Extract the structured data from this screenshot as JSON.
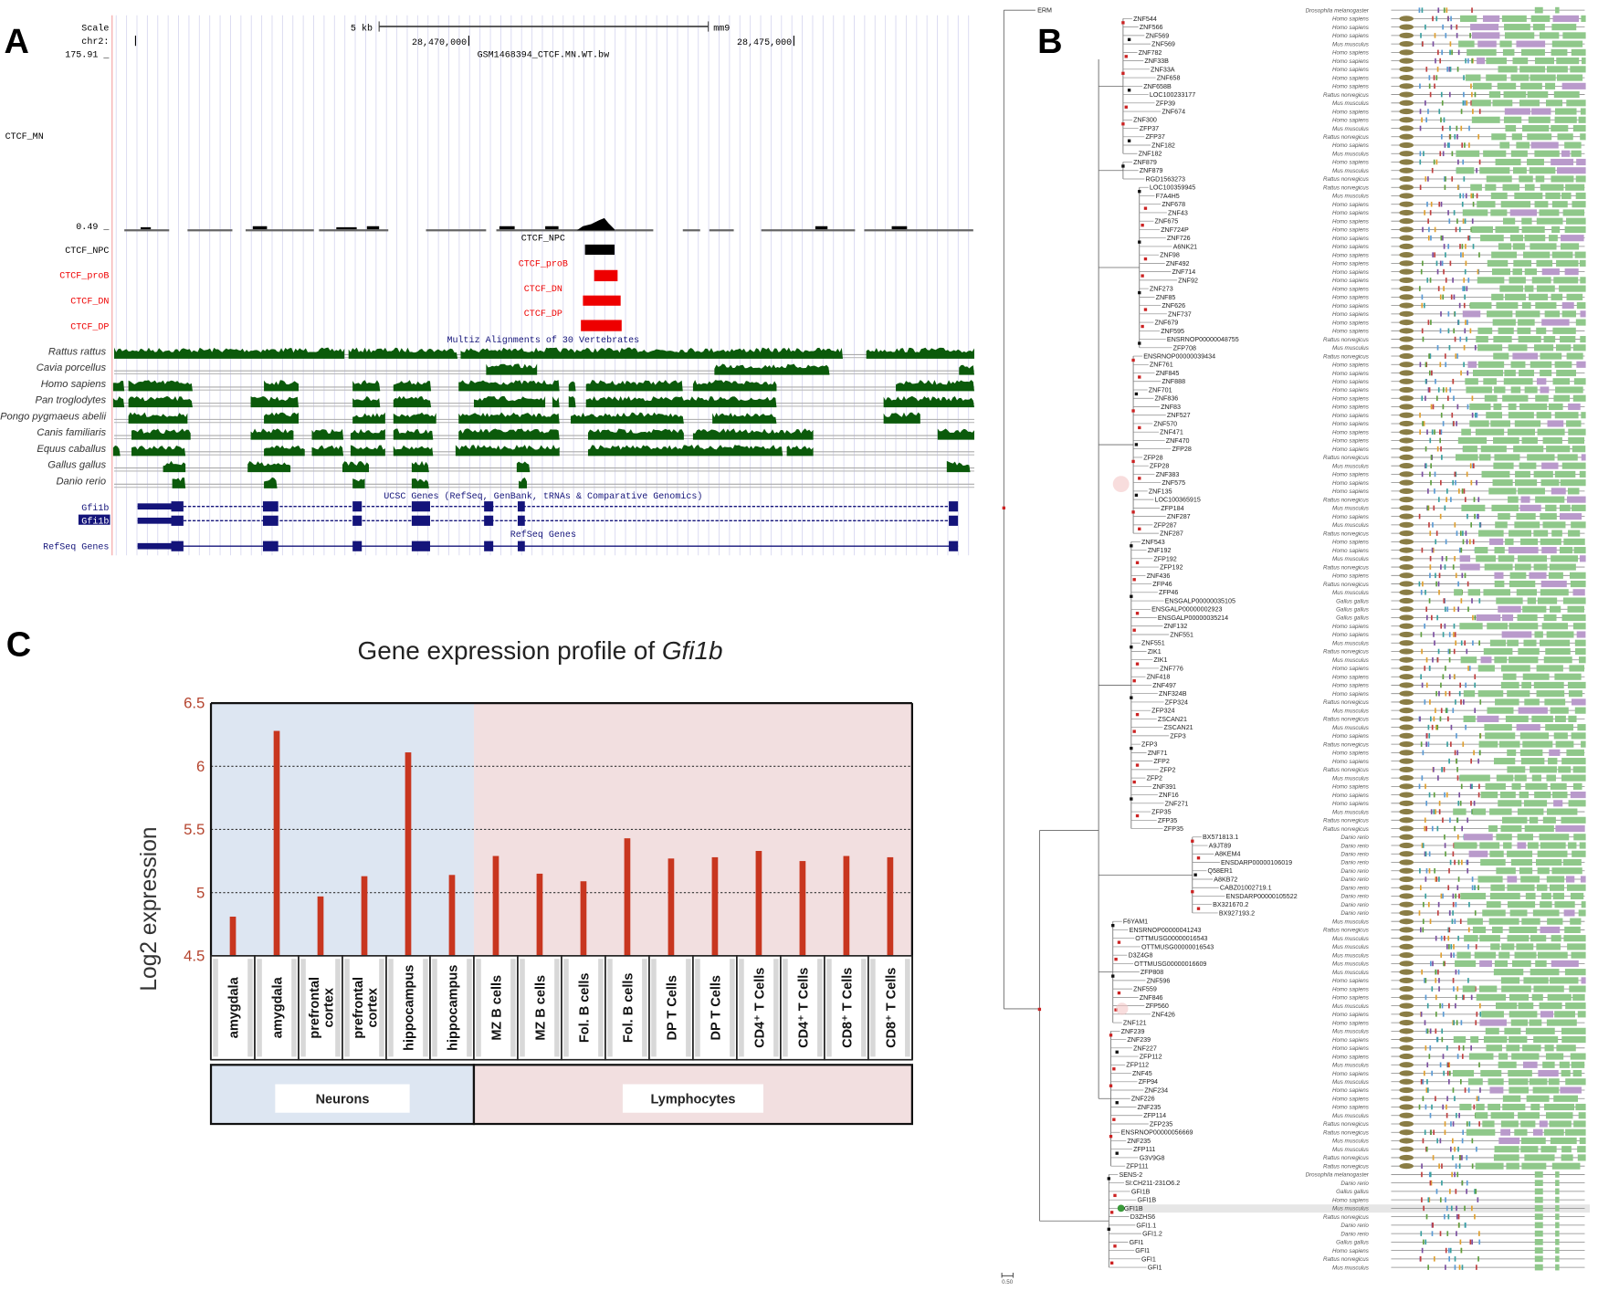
{
  "panel_letters": {
    "a": "A",
    "b": "B",
    "c": "C"
  },
  "panel_a": {
    "left_labels": {
      "scale": "Scale",
      "chr": "chr2:",
      "max": "175.91 _",
      "track": "CTCF_MN",
      "min": "0.49 _",
      "npc": "CTCF_NPC",
      "prob": "CTCF_proB",
      "dn": "CTCF_DN",
      "dp": "CTCF_DP",
      "gene1": "Gfi1b",
      "gene2": "Gfi1b",
      "refseq": "RefSeq Genes"
    },
    "scale_bar": "5 kb",
    "assembly": "mm9",
    "positions": [
      "28,470,000",
      "28,475,000"
    ],
    "signal_title": "GSM1468394_CTCF.MN.WT.bw",
    "peak_tracks": [
      {
        "label": "CTCF_NPC",
        "color": "#000000"
      },
      {
        "label": "CTCF_proB",
        "color": "#ee0000"
      },
      {
        "label": "CTCF_DN",
        "color": "#ee0000"
      },
      {
        "label": "CTCF_DP",
        "color": "#ee0000"
      }
    ],
    "multiz_title": "Multiz Alignments of 30 Vertebrates",
    "species": [
      "Rattus rattus",
      "Cavia porcellus",
      "Homo sapiens",
      "Pan troglodytes",
      "Pongo pygmaeus abelii",
      "Canis familiaris",
      "Equus caballus",
      "Gallus gallus",
      "Danio rerio"
    ],
    "ucsc_title": "UCSC Genes (RefSeq, GenBank, tRNAs & Comparative Genomics)",
    "refseq_title": "RefSeq Genes",
    "colors": {
      "conservation": "#0b5a0b",
      "gene": "#14147a",
      "peak_red": "#ee0000",
      "grid": "#d8d8f0"
    }
  },
  "panel_b": {
    "scale_label": "0.50",
    "highlighted_leaf": "GFI1B",
    "leaves": [
      [
        "ERM",
        "Drosophila melanogaster"
      ],
      [
        "ZNF544",
        "Homo sapiens"
      ],
      [
        "ZNF566",
        "Homo sapiens"
      ],
      [
        "ZNF569",
        "Homo sapiens"
      ],
      [
        "ZNF569",
        "Mus musculus"
      ],
      [
        "ZNF782",
        "Homo sapiens"
      ],
      [
        "ZNF33B",
        "Homo sapiens"
      ],
      [
        "ZNF33A",
        "Homo sapiens"
      ],
      [
        "ZNF658",
        "Homo sapiens"
      ],
      [
        "ZNF658B",
        "Homo sapiens"
      ],
      [
        "LOC100233177",
        "Rattus norvegicus"
      ],
      [
        "ZFP39",
        "Mus musculus"
      ],
      [
        "ZNF674",
        "Homo sapiens"
      ],
      [
        "ZNF300",
        "Homo sapiens"
      ],
      [
        "ZFP37",
        "Mus musculus"
      ],
      [
        "ZFP37",
        "Rattus norvegicus"
      ],
      [
        "ZNF182",
        "Homo sapiens"
      ],
      [
        "ZNF182",
        "Mus musculus"
      ],
      [
        "ZNF879",
        "Homo sapiens"
      ],
      [
        "ZNF879",
        "Mus musculus"
      ],
      [
        "RGD1563273",
        "Rattus norvegicus"
      ],
      [
        "LOC100359945",
        "Rattus norvegicus"
      ],
      [
        "F7A4H5",
        "Mus musculus"
      ],
      [
        "ZNF678",
        "Homo sapiens"
      ],
      [
        "ZNF43",
        "Homo sapiens"
      ],
      [
        "ZNF675",
        "Homo sapiens"
      ],
      [
        "ZNF724P",
        "Homo sapiens"
      ],
      [
        "ZNF726",
        "Homo sapiens"
      ],
      [
        "A6NK21",
        "Homo sapiens"
      ],
      [
        "ZNF98",
        "Homo sapiens"
      ],
      [
        "ZNF492",
        "Homo sapiens"
      ],
      [
        "ZNF714",
        "Homo sapiens"
      ],
      [
        "ZNF92",
        "Homo sapiens"
      ],
      [
        "ZNF273",
        "Homo sapiens"
      ],
      [
        "ZNF85",
        "Homo sapiens"
      ],
      [
        "ZNF626",
        "Homo sapiens"
      ],
      [
        "ZNF737",
        "Homo sapiens"
      ],
      [
        "ZNF679",
        "Homo sapiens"
      ],
      [
        "ZNF595",
        "Homo sapiens"
      ],
      [
        "ENSRNOP00000048755",
        "Rattus norvegicus"
      ],
      [
        "ZFP708",
        "Mus musculus"
      ],
      [
        "ENSRNOP00000039434",
        "Rattus norvegicus"
      ],
      [
        "ZNF761",
        "Homo sapiens"
      ],
      [
        "ZNF845",
        "Homo sapiens"
      ],
      [
        "ZNF888",
        "Homo sapiens"
      ],
      [
        "ZNF701",
        "Homo sapiens"
      ],
      [
        "ZNF836",
        "Homo sapiens"
      ],
      [
        "ZNF83",
        "Homo sapiens"
      ],
      [
        "ZNF527",
        "Homo sapiens"
      ],
      [
        "ZNF570",
        "Homo sapiens"
      ],
      [
        "ZNF471",
        "Homo sapiens"
      ],
      [
        "ZNF470",
        "Homo sapiens"
      ],
      [
        "ZFP28",
        "Homo sapiens"
      ],
      [
        "ZFP28",
        "Rattus norvegicus"
      ],
      [
        "ZFP28",
        "Mus musculus"
      ],
      [
        "ZNF383",
        "Homo sapiens"
      ],
      [
        "ZNF575",
        "Homo sapiens"
      ],
      [
        "ZNF135",
        "Homo sapiens"
      ],
      [
        "LOC100365915",
        "Rattus norvegicus"
      ],
      [
        "ZFP184",
        "Mus musculus"
      ],
      [
        "ZNF287",
        "Homo sapiens"
      ],
      [
        "ZFP287",
        "Mus musculus"
      ],
      [
        "ZNF287",
        "Rattus norvegicus"
      ],
      [
        "ZNF543",
        "Homo sapiens"
      ],
      [
        "ZNF192",
        "Homo sapiens"
      ],
      [
        "ZFP192",
        "Mus musculus"
      ],
      [
        "ZFP192",
        "Rattus norvegicus"
      ],
      [
        "ZNF436",
        "Homo sapiens"
      ],
      [
        "ZFP46",
        "Rattus norvegicus"
      ],
      [
        "ZFP46",
        "Mus musculus"
      ],
      [
        "ENSGALP00000035105",
        "Gallus gallus"
      ],
      [
        "ENSGALP00000002923",
        "Gallus gallus"
      ],
      [
        "ENSGALP00000035214",
        "Gallus gallus"
      ],
      [
        "ZNF132",
        "Homo sapiens"
      ],
      [
        "ZNF551",
        "Homo sapiens"
      ],
      [
        "ZNF551",
        "Mus musculus"
      ],
      [
        "ZIK1",
        "Rattus norvegicus"
      ],
      [
        "ZIK1",
        "Mus musculus"
      ],
      [
        "ZNF776",
        "Homo sapiens"
      ],
      [
        "ZNF418",
        "Homo sapiens"
      ],
      [
        "ZNF497",
        "Homo sapiens"
      ],
      [
        "ZNF324B",
        "Homo sapiens"
      ],
      [
        "ZFP324",
        "Rattus norvegicus"
      ],
      [
        "ZFP324",
        "Mus musculus"
      ],
      [
        "ZSCAN21",
        "Rattus norvegicus"
      ],
      [
        "ZSCAN21",
        "Mus musculus"
      ],
      [
        "ZFP3",
        "Homo sapiens"
      ],
      [
        "ZFP3",
        "Rattus norvegicus"
      ],
      [
        "ZNF71",
        "Homo sapiens"
      ],
      [
        "ZFP2",
        "Homo sapiens"
      ],
      [
        "ZFP2",
        "Rattus norvegicus"
      ],
      [
        "ZFP2",
        "Mus musculus"
      ],
      [
        "ZNF391",
        "Homo sapiens"
      ],
      [
        "ZNF16",
        "Homo sapiens"
      ],
      [
        "ZNF271",
        "Homo sapiens"
      ],
      [
        "ZFP35",
        "Mus musculus"
      ],
      [
        "ZFP35",
        "Rattus norvegicus"
      ],
      [
        "ZFP35",
        "Rattus norvegicus"
      ],
      [
        "BX571813.1",
        "Danio rerio"
      ],
      [
        "A9JT89",
        "Danio rerio"
      ],
      [
        "A8KEM4",
        "Danio rerio"
      ],
      [
        "ENSDARP00000106019",
        "Danio rerio"
      ],
      [
        "Q58ER1",
        "Danio rerio"
      ],
      [
        "A8KB72",
        "Danio rerio"
      ],
      [
        "CABZ01002719.1",
        "Danio rerio"
      ],
      [
        "ENSDARP00000105522",
        "Danio rerio"
      ],
      [
        "BX321670.2",
        "Danio rerio"
      ],
      [
        "BX927193.2",
        "Danio rerio"
      ],
      [
        "F6YAM1",
        "Mus musculus"
      ],
      [
        "ENSRNOP00000041243",
        "Rattus norvegicus"
      ],
      [
        "OTTMUSG00000016543",
        "Mus musculus"
      ],
      [
        "OTTMUSG00000016543",
        "Mus musculus"
      ],
      [
        "D3Z4G8",
        "Mus musculus"
      ],
      [
        "OTTMUSG00000016609",
        "Mus musculus"
      ],
      [
        "ZFP808",
        "Mus musculus"
      ],
      [
        "ZNF596",
        "Homo sapiens"
      ],
      [
        "ZNF559",
        "Homo sapiens"
      ],
      [
        "ZNF846",
        "Homo sapiens"
      ],
      [
        "ZFP560",
        "Mus musculus"
      ],
      [
        "ZNF426",
        "Homo sapiens"
      ],
      [
        "ZNF121",
        "Homo sapiens"
      ],
      [
        "ZNF239",
        "Mus musculus"
      ],
      [
        "ZNF239",
        "Homo sapiens"
      ],
      [
        "ZNF227",
        "Homo sapiens"
      ],
      [
        "ZFP112",
        "Homo sapiens"
      ],
      [
        "ZFP112",
        "Mus musculus"
      ],
      [
        "ZNF45",
        "Homo sapiens"
      ],
      [
        "ZFP94",
        "Mus musculus"
      ],
      [
        "ZNF234",
        "Homo sapiens"
      ],
      [
        "ZNF226",
        "Homo sapiens"
      ],
      [
        "ZNF235",
        "Homo sapiens"
      ],
      [
        "ZFP114",
        "Mus musculus"
      ],
      [
        "ZFP235",
        "Rattus norvegicus"
      ],
      [
        "ENSRNOP00000056669",
        "Rattus norvegicus"
      ],
      [
        "ZNF235",
        "Mus musculus"
      ],
      [
        "ZFP111",
        "Mus musculus"
      ],
      [
        "G3V9G8",
        "Rattus norvegicus"
      ],
      [
        "ZFP111",
        "Rattus norvegicus"
      ],
      [
        "SENS-2",
        "Drosophila melanogaster"
      ],
      [
        "SI:CH211-231O6.2",
        "Danio rerio"
      ],
      [
        "GFI1B",
        "Gallus gallus"
      ],
      [
        "GFI1B",
        "Homo sapiens"
      ],
      [
        "GFI1B",
        "Mus musculus"
      ],
      [
        "D3ZHS6",
        "Rattus norvegicus"
      ],
      [
        "GFI1.1",
        "Danio rerio"
      ],
      [
        "GFI1.2",
        "Danio rerio"
      ],
      [
        "GFI1",
        "Gallus gallus"
      ],
      [
        "GFI1",
        "Homo sapiens"
      ],
      [
        "GFI1",
        "Rattus norvegicus"
      ],
      [
        "GFI1",
        "Mus musculus"
      ]
    ],
    "colors": {
      "domain_green": "#8fc88a",
      "krab": "#8a7d45",
      "node_red": "#cc2222",
      "node_black": "#111111"
    }
  },
  "chart_data": {
    "type": "bar",
    "title": "Gene expression profile of ",
    "title_italic": "Gfi1b",
    "ylabel": "Log2 expression",
    "xlabel": "",
    "ylim": [
      4.5,
      6.5
    ],
    "yticks": [
      "4.5",
      "5",
      "5.5",
      "6",
      "6.5"
    ],
    "grid": "dotted horizontal at 5, 5.5, 6",
    "categories": [
      "amygdala",
      "amygdala",
      "prefrontal cortex",
      "prefrontal cortex",
      "hippocampus",
      "hippocampus",
      "MZ B cells",
      "MZ B cells",
      "Fol.  B cells",
      "Fol.  B cells",
      "DP T Cells",
      "DP T Cells",
      "CD4⁺ T Cells",
      "CD4⁺ T Cells",
      "CD8⁺ T Cells",
      "CD8⁺ T Cells"
    ],
    "values": [
      4.81,
      6.28,
      4.97,
      5.13,
      6.11,
      5.14,
      5.29,
      5.15,
      5.09,
      5.43,
      5.27,
      5.28,
      5.33,
      5.25,
      5.29,
      5.28
    ],
    "groups": [
      {
        "label": "Neurons",
        "span": 6,
        "color": "#dde6f2"
      },
      {
        "label": "Lymphocytes",
        "span": 10,
        "color": "#f2dfe0"
      }
    ],
    "bar_color": "#c8361f",
    "tick_color": "#b5452f"
  }
}
